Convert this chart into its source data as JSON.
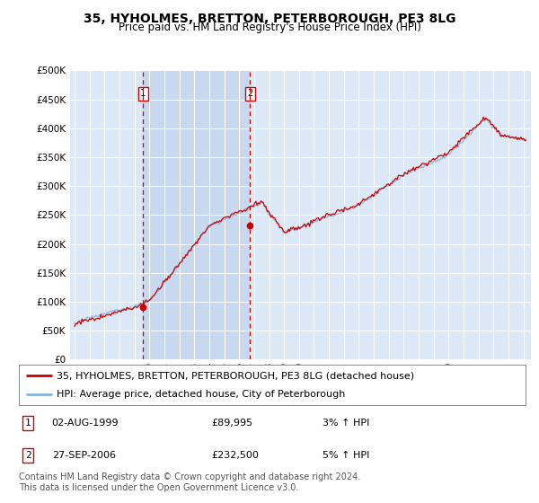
{
  "title": "35, HYHOLMES, BRETTON, PETERBOROUGH, PE3 8LG",
  "subtitle": "Price paid vs. HM Land Registry's House Price Index (HPI)",
  "ylim": [
    0,
    500000
  ],
  "yticks": [
    0,
    50000,
    100000,
    150000,
    200000,
    250000,
    300000,
    350000,
    400000,
    450000,
    500000
  ],
  "ytick_labels": [
    "£0",
    "£50K",
    "£100K",
    "£150K",
    "£200K",
    "£250K",
    "£300K",
    "£350K",
    "£400K",
    "£450K",
    "£500K"
  ],
  "xlim_start": 1994.7,
  "xlim_end": 2025.5,
  "background_color": "#ffffff",
  "plot_bg_color": "#dce8f5",
  "highlight_bg_color": "#c8d8ee",
  "grid_color": "#ffffff",
  "sale1_date": 1999.583,
  "sale1_price": 89995,
  "sale2_date": 2006.736,
  "sale2_price": 232500,
  "hpi_line_color": "#88b4d8",
  "price_line_color": "#cc0000",
  "sale_marker_color": "#cc0000",
  "vline_color": "#cc0000",
  "legend_label1": "35, HYHOLMES, BRETTON, PETERBOROUGH, PE3 8LG (detached house)",
  "legend_label2": "HPI: Average price, detached house, City of Peterborough",
  "table_row1": [
    "1",
    "02-AUG-1999",
    "£89,995",
    "3% ↑ HPI"
  ],
  "table_row2": [
    "2",
    "27-SEP-2006",
    "£232,500",
    "5% ↑ HPI"
  ],
  "footnote": "Contains HM Land Registry data © Crown copyright and database right 2024.\nThis data is licensed under the Open Government Licence v3.0.",
  "title_fontsize": 10,
  "subtitle_fontsize": 8.5,
  "tick_fontsize": 7.5,
  "legend_fontsize": 8,
  "table_fontsize": 8,
  "footnote_fontsize": 7
}
